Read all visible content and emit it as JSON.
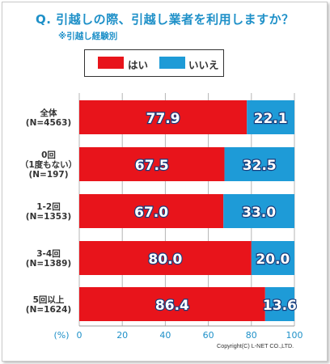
{
  "chart_data": {
    "type": "bar",
    "orientation": "horizontal",
    "stacked": true,
    "title": "Q. 引越しの際、引越し業者を利用しますか？",
    "subtitle": "※引越し経験別",
    "categories": [
      "全体\n(N=4563)",
      "0回\n（1度もない）\n(N=197)",
      "1-2回\n(N=1353)",
      "3-4回\n(N=1389)",
      "5回以上\n(N=1624)"
    ],
    "series": [
      {
        "name": "はい",
        "color": "#e8141b",
        "values": [
          77.9,
          67.5,
          67.0,
          80.0,
          86.4
        ]
      },
      {
        "name": "いいえ",
        "color": "#1e9bd7",
        "values": [
          22.1,
          32.5,
          33.0,
          20.0,
          13.6
        ]
      }
    ],
    "xlabel": "(%)",
    "xlim": [
      0,
      100
    ],
    "xticks": [
      "0",
      "20",
      "40",
      "60",
      "80",
      "100"
    ],
    "grid": true,
    "legend_position": "top"
  },
  "copyright": "Copyright(C) L-NET CO.,LTD."
}
